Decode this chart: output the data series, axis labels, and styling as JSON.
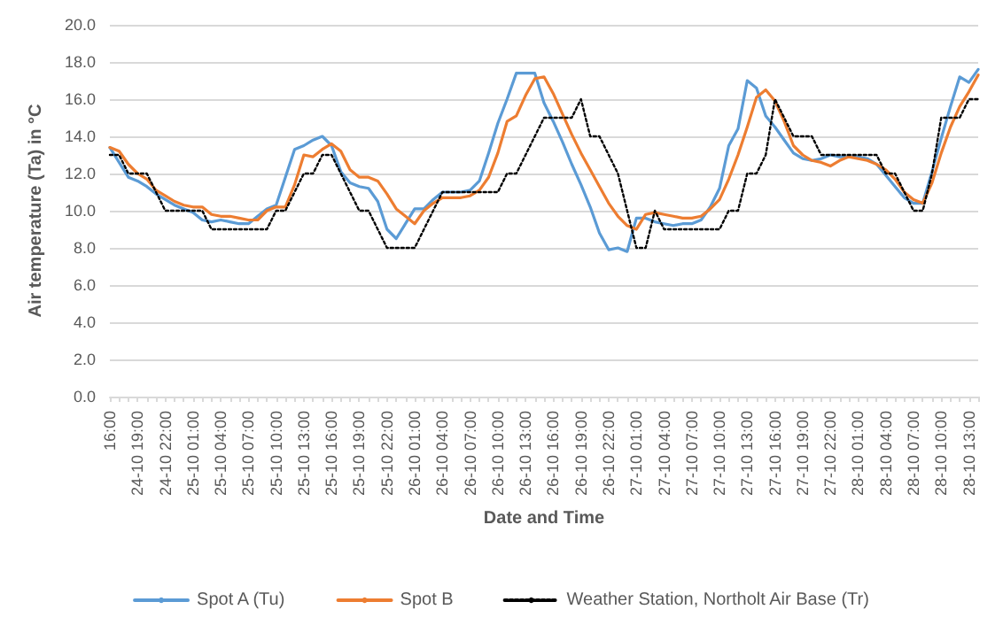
{
  "chart_data": {
    "type": "line",
    "xlabel": "Date and Time",
    "ylabel": "Air temperature (Ta) in °C",
    "categories": [
      "16:00",
      null,
      null,
      "24-10 19:00",
      null,
      null,
      "24-10 22:00",
      null,
      null,
      "25-10 01:00",
      null,
      null,
      "25-10 04:00",
      null,
      null,
      "25-10 07:00",
      null,
      null,
      "25-10 10:00",
      null,
      null,
      "25-10 13:00",
      null,
      null,
      "25-10 16:00",
      null,
      null,
      "25-10 19:00",
      null,
      null,
      "25-10 22:00",
      null,
      null,
      "26-10 01:00",
      null,
      null,
      "26-10 04:00",
      null,
      null,
      "26-10 07:00",
      null,
      null,
      "26-10 10:00",
      null,
      null,
      "26-10 13:00",
      null,
      null,
      "26-10 16:00",
      null,
      null,
      "26-10 19:00",
      null,
      null,
      "26-10 22:00",
      null,
      null,
      "27-10 01:00",
      null,
      null,
      "27-10 04:00",
      null,
      null,
      "27-10 07:00",
      null,
      null,
      "27-10 10:00",
      null,
      null,
      "27-10 13:00",
      null,
      null,
      "27-10 16:00",
      null,
      null,
      "27-10 19:00",
      null,
      null,
      "27-10 22:00",
      null,
      null,
      "28-10 01:00",
      null,
      null,
      "28-10 04:00",
      null,
      null,
      "28-10 07:00",
      null,
      null,
      "28-10 10:00",
      null,
      null,
      "28-10 13:00",
      null
    ],
    "ylim": [
      0,
      20
    ],
    "yticks": [
      {
        "value": 0,
        "label": "0.0"
      },
      {
        "value": 2,
        "label": "2.0"
      },
      {
        "value": 4,
        "label": "4.0"
      },
      {
        "value": 6,
        "label": "6.0"
      },
      {
        "value": 8,
        "label": "8.0"
      },
      {
        "value": 10,
        "label": "10.0"
      },
      {
        "value": 12,
        "label": "12.0"
      },
      {
        "value": 14,
        "label": "14.0"
      },
      {
        "value": 16,
        "label": "16.0"
      },
      {
        "value": 18,
        "label": "18.0"
      },
      {
        "value": 20,
        "label": "20.0"
      }
    ],
    "grid": "y",
    "legend": "bottom",
    "marker": "none",
    "series": [
      {
        "name": "Spot A (Tu)",
        "color": "#5b9bd5",
        "line_style": "solid",
        "values": [
          13.4,
          12.6,
          11.8,
          11.6,
          11.3,
          10.9,
          10.6,
          10.3,
          10.1,
          9.9,
          9.5,
          9.4,
          9.5,
          9.4,
          9.3,
          9.3,
          9.7,
          10.1,
          10.3,
          11.8,
          13.3,
          13.5,
          13.8,
          14.0,
          13.5,
          12.1,
          11.5,
          11.3,
          11.2,
          10.5,
          9.0,
          8.5,
          9.3,
          10.1,
          10.1,
          10.6,
          11.0,
          11.0,
          11.0,
          11.1,
          11.6,
          13.1,
          14.7,
          16.0,
          17.4,
          17.4,
          17.4,
          15.8,
          14.8,
          13.7,
          12.5,
          11.4,
          10.2,
          8.8,
          7.9,
          8.0,
          7.8,
          9.6,
          9.6,
          9.4,
          9.3,
          9.2,
          9.3,
          9.3,
          9.5,
          10.2,
          11.2,
          13.5,
          14.4,
          17.0,
          16.6,
          15.1,
          14.5,
          13.8,
          13.1,
          12.8,
          12.7,
          12.8,
          13.0,
          12.9,
          12.9,
          12.9,
          12.8,
          12.5,
          11.9,
          11.3,
          10.7,
          10.4,
          10.4,
          12.1,
          13.9,
          15.6,
          17.2,
          16.9,
          17.6
        ]
      },
      {
        "name": "Spot B",
        "color": "#ed7d31",
        "line_style": "solid",
        "values": [
          13.4,
          13.2,
          12.5,
          12.0,
          11.7,
          11.1,
          10.8,
          10.5,
          10.3,
          10.2,
          10.2,
          9.8,
          9.7,
          9.7,
          9.6,
          9.5,
          9.5,
          10.0,
          10.2,
          10.2,
          11.4,
          13.0,
          12.9,
          13.3,
          13.6,
          13.2,
          12.2,
          11.8,
          11.8,
          11.6,
          10.9,
          10.1,
          9.7,
          9.3,
          10.0,
          10.4,
          10.7,
          10.7,
          10.7,
          10.8,
          11.1,
          11.8,
          13.1,
          14.8,
          15.1,
          16.2,
          17.1,
          17.2,
          16.3,
          15.2,
          14.1,
          13.1,
          12.2,
          11.3,
          10.4,
          9.7,
          9.2,
          9.0,
          9.8,
          9.9,
          9.8,
          9.7,
          9.6,
          9.6,
          9.7,
          10.1,
          10.6,
          11.7,
          13.0,
          14.5,
          16.1,
          16.5,
          15.9,
          14.8,
          13.5,
          13.0,
          12.7,
          12.6,
          12.4,
          12.7,
          12.9,
          12.8,
          12.7,
          12.5,
          12.2,
          11.7,
          11.0,
          10.6,
          10.4,
          11.5,
          13.1,
          14.5,
          15.6,
          16.4,
          17.3
        ]
      },
      {
        "name": "Weather Station, Northolt Air Base (Tr)",
        "color": "#000000",
        "line_style": "dotted",
        "values": [
          13,
          13,
          12,
          12,
          12,
          11,
          10,
          10,
          10,
          10,
          10,
          9,
          9,
          9,
          9,
          9,
          9,
          9,
          10,
          10,
          11,
          12,
          12,
          13,
          13,
          12,
          11,
          10,
          10,
          9,
          8,
          8,
          8,
          8,
          9,
          10,
          11,
          11,
          11,
          11,
          11,
          11,
          11,
          12,
          12,
          13,
          14,
          15,
          15,
          15,
          15,
          16,
          14,
          14,
          13,
          12,
          10,
          8,
          8,
          10,
          9,
          9,
          9,
          9,
          9,
          9,
          9,
          10,
          10,
          12,
          12,
          13,
          16,
          15,
          14,
          14,
          14,
          13,
          13,
          13,
          13,
          13,
          13,
          13,
          12,
          12,
          11,
          10,
          10,
          12,
          15,
          15,
          15,
          16,
          16
        ]
      }
    ]
  }
}
